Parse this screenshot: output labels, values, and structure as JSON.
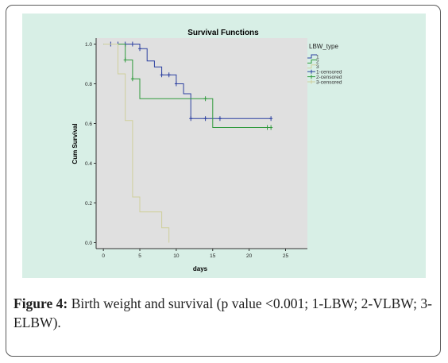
{
  "chart_data": {
    "type": "line",
    "subtype": "kaplan-meier step",
    "title": "Survival Functions",
    "xlabel": "days",
    "ylabel": "Cum Survival",
    "xlim": [
      -1,
      28
    ],
    "ylim": [
      -0.03,
      1.03
    ],
    "xticks": [
      0,
      5,
      10,
      15,
      20,
      25
    ],
    "yticks": [
      0.0,
      0.2,
      0.4,
      0.6,
      0.8,
      1.0
    ],
    "grid": false,
    "plot_background": "#e0e0e0",
    "legend": {
      "title": "LBW_type",
      "placement": "right",
      "entries": [
        "1",
        "2",
        "3",
        "1-censored",
        "2-censored",
        "3-censored"
      ]
    },
    "series": [
      {
        "name": "1",
        "color": "#2b3fa0",
        "points": [
          [
            0,
            1.0
          ],
          [
            5,
            1.0
          ],
          [
            5,
            0.977
          ],
          [
            6,
            0.977
          ],
          [
            6,
            0.915
          ],
          [
            7,
            0.915
          ],
          [
            7,
            0.885
          ],
          [
            8,
            0.885
          ],
          [
            8,
            0.845
          ],
          [
            10,
            0.845
          ],
          [
            10,
            0.8
          ],
          [
            11,
            0.8
          ],
          [
            11,
            0.75
          ],
          [
            12,
            0.75
          ],
          [
            12,
            0.625
          ],
          [
            23,
            0.625
          ]
        ],
        "censored": [
          [
            1,
            1.0
          ],
          [
            2,
            1.0
          ],
          [
            3,
            1.0
          ],
          [
            4,
            1.0
          ],
          [
            5,
            0.977
          ],
          [
            8,
            0.845
          ],
          [
            9,
            0.845
          ],
          [
            10,
            0.8
          ],
          [
            12,
            0.625
          ],
          [
            14,
            0.625
          ],
          [
            16,
            0.625
          ],
          [
            23,
            0.625
          ]
        ]
      },
      {
        "name": "2",
        "color": "#2f9a3c",
        "points": [
          [
            0,
            1.0
          ],
          [
            3,
            1.0
          ],
          [
            3,
            0.92
          ],
          [
            4,
            0.92
          ],
          [
            4,
            0.825
          ],
          [
            5,
            0.825
          ],
          [
            5,
            0.725
          ],
          [
            15,
            0.725
          ],
          [
            15,
            0.58
          ],
          [
            23,
            0.58
          ]
        ],
        "censored": [
          [
            3,
            0.92
          ],
          [
            4,
            0.825
          ],
          [
            14,
            0.725
          ],
          [
            22.5,
            0.58
          ],
          [
            23,
            0.58
          ]
        ]
      },
      {
        "name": "3",
        "color": "#cfcf9c",
        "points": [
          [
            0,
            1.0
          ],
          [
            2,
            1.0
          ],
          [
            2,
            0.85
          ],
          [
            3,
            0.85
          ],
          [
            3,
            0.615
          ],
          [
            4,
            0.615
          ],
          [
            4,
            0.23
          ],
          [
            5,
            0.23
          ],
          [
            5,
            0.155
          ],
          [
            8,
            0.155
          ],
          [
            8,
            0.075
          ],
          [
            9,
            0.075
          ],
          [
            9,
            0.0
          ]
        ],
        "censored": []
      }
    ]
  },
  "caption": {
    "label": "Figure 4:",
    "text": "Birth weight and survival (p value <0.001; 1-LBW; 2-VLBW; 3-ELBW)."
  }
}
